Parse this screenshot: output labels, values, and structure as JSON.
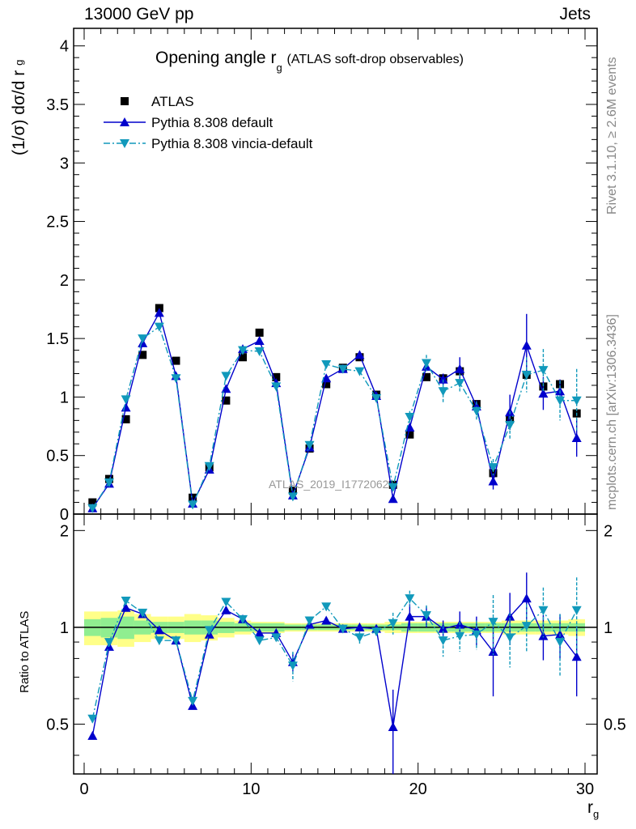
{
  "header": {
    "left": "13000 GeV pp",
    "right": "Jets"
  },
  "watermark": "ATLAS_2019_I1772062",
  "side_labels": {
    "rivet": "Rivet 3.1.10, ≥ 2.6M events",
    "mcplots": "mcplots.cern.ch [arXiv:1306.3436]"
  },
  "colors": {
    "data": "#000000",
    "default": "#0000cc",
    "vincia": "#1199bb",
    "band_inner": "#90ee90",
    "band_outer": "#ffff88"
  },
  "chart_data": [
    {
      "type": "scatter",
      "title": "Opening angle r",
      "title_sub": "g",
      "title_suffix": "(ATLAS soft-drop observables)",
      "ylabel": "(1/σ) dσ/d r",
      "ylabel_sub": "g",
      "xlim": [
        0,
        30
      ],
      "ylim": [
        0,
        4.15
      ],
      "yticks": [
        "0",
        "0.5",
        "1",
        "1.5",
        "2",
        "2.5",
        "3",
        "3.5",
        "4"
      ],
      "x": [
        0.5,
        1.5,
        2.5,
        3.5,
        4.5,
        5.5,
        6.5,
        7.5,
        8.5,
        9.5,
        10.5,
        11.5,
        12.5,
        13.5,
        14.5,
        15.5,
        16.5,
        17.5,
        18.5,
        19.5,
        20.5,
        21.5,
        22.5,
        23.5,
        24.5,
        25.5,
        26.5,
        27.5,
        28.5,
        29.5
      ],
      "series": [
        {
          "name": "ATLAS",
          "marker": "square",
          "values": [
            0.1,
            0.3,
            0.81,
            1.36,
            1.76,
            1.31,
            0.14,
            0.4,
            0.97,
            1.34,
            1.55,
            1.17,
            0.2,
            0.56,
            1.11,
            1.25,
            1.34,
            1.02,
            0.25,
            0.68,
            1.17,
            1.16,
            1.22,
            0.94,
            0.35,
            0.81,
            1.19,
            1.09,
            1.11,
            0.86
          ]
        },
        {
          "name": "Pythia 8.308 default",
          "marker": "triangle-up",
          "line": "solid",
          "values": [
            0.05,
            0.26,
            0.91,
            1.46,
            1.72,
            1.18,
            0.09,
            0.38,
            1.07,
            1.41,
            1.48,
            1.12,
            0.16,
            0.57,
            1.16,
            1.24,
            1.36,
            1.01,
            0.13,
            0.74,
            1.26,
            1.15,
            1.24,
            0.92,
            0.28,
            0.87,
            1.44,
            1.03,
            1.05,
            0.65
          ],
          "errors": [
            0,
            0,
            0,
            0,
            0,
            0,
            0,
            0,
            0,
            0,
            0,
            0,
            0,
            0,
            0,
            0,
            0.03,
            0,
            0,
            0,
            0,
            0.05,
            0.1,
            0.05,
            0.07,
            0.15,
            0.27,
            0.14,
            0.1,
            0.16
          ]
        },
        {
          "name": "Pythia 8.308 vincia-default",
          "marker": "triangle-down",
          "line": "dashdot",
          "values": [
            0.05,
            0.27,
            0.98,
            1.5,
            1.6,
            1.16,
            0.08,
            0.41,
            1.18,
            1.4,
            1.39,
            1.09,
            0.15,
            0.59,
            1.28,
            1.24,
            1.22,
            0.99,
            0.23,
            0.83,
            1.29,
            1.05,
            1.12,
            0.88,
            0.4,
            0.76,
            1.19,
            1.23,
            0.97,
            0.97
          ],
          "errors": [
            0,
            0,
            0,
            0,
            0,
            0,
            0,
            0,
            0,
            0,
            0,
            0,
            0,
            0,
            0,
            0,
            0.03,
            0,
            0.02,
            0.05,
            0.07,
            0.1,
            0.08,
            0.08,
            0.07,
            0.12,
            0.15,
            0.18,
            0.17,
            0.27
          ]
        }
      ],
      "legend": [
        "ATLAS",
        "Pythia 8.308 default",
        "Pythia 8.308 vincia-default"
      ],
      "legend_position": "top-left"
    },
    {
      "type": "scatter",
      "ylabel": "Ratio to ATLAS",
      "xlabel": "r",
      "xlabel_sub": "g",
      "xlim": [
        0,
        30
      ],
      "ylim": [
        0.35,
        2.25
      ],
      "ytick_labels": [
        "0.5",
        "1",
        "2"
      ],
      "xticks": [
        "0",
        "10",
        "20",
        "30"
      ],
      "band_inner": [
        0.06,
        0.07,
        0.08,
        0.05,
        0.04,
        0.04,
        0.05,
        0.05,
        0.04,
        0.03,
        0.03,
        0.03,
        0.02,
        0.02,
        0.02,
        0.02,
        0.02,
        0.02,
        0.02,
        0.03,
        0.03,
        0.03,
        0.03,
        0.03,
        0.03,
        0.03,
        0.03,
        0.03,
        0.03,
        0.03
      ],
      "band_outer": [
        0.12,
        0.12,
        0.13,
        0.1,
        0.08,
        0.08,
        0.1,
        0.09,
        0.07,
        0.05,
        0.04,
        0.04,
        0.03,
        0.03,
        0.03,
        0.03,
        0.03,
        0.03,
        0.04,
        0.04,
        0.04,
        0.04,
        0.04,
        0.04,
        0.04,
        0.05,
        0.05,
        0.05,
        0.05,
        0.06
      ],
      "series": [
        {
          "name": "Pythia 8.308 default",
          "values": [
            0.46,
            0.87,
            1.15,
            1.1,
            0.98,
            0.91,
            0.57,
            0.95,
            1.13,
            1.06,
            0.96,
            0.96,
            0.78,
            1.02,
            1.05,
            0.99,
            1.0,
            0.99,
            0.49,
            1.08,
            1.08,
            0.99,
            1.02,
            0.98,
            0.84,
            1.08,
            1.23,
            0.94,
            0.95,
            0.81
          ],
          "errors": [
            0,
            0,
            0,
            0,
            0,
            0,
            0,
            0,
            0,
            0,
            0,
            0,
            0.05,
            0,
            0,
            0,
            0.02,
            0,
            0.15,
            0.1,
            0.08,
            0.06,
            0.1,
            0.1,
            0.23,
            0.2,
            0.25,
            0.15,
            0.15,
            0.2
          ]
        },
        {
          "name": "Pythia 8.308 vincia-default",
          "values": [
            0.52,
            0.9,
            1.21,
            1.11,
            0.91,
            0.91,
            0.59,
            0.98,
            1.2,
            1.06,
            0.91,
            0.93,
            0.76,
            1.05,
            1.16,
            0.99,
            0.93,
            0.97,
            1.03,
            1.23,
            1.09,
            0.91,
            0.94,
            0.95,
            1.04,
            0.93,
            1.01,
            1.13,
            0.9,
            1.13
          ],
          "errors": [
            0,
            0,
            0,
            0,
            0,
            0,
            0,
            0,
            0,
            0,
            0,
            0,
            0.08,
            0,
            0,
            0,
            0.04,
            0,
            0.08,
            0.07,
            0.08,
            0.1,
            0.1,
            0.1,
            0.22,
            0.18,
            0.17,
            0.2,
            0.2,
            0.3
          ]
        }
      ]
    }
  ]
}
